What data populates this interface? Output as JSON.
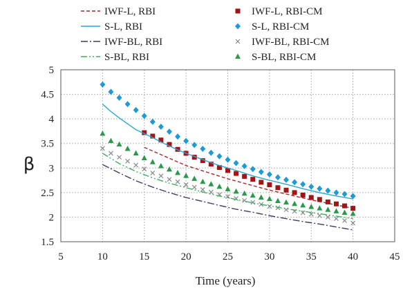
{
  "chart_data": {
    "type": "line",
    "ylabel": "β",
    "xlabel": "Time (years)",
    "xlim": [
      5,
      45
    ],
    "ylim": [
      1.5,
      5
    ],
    "xticks": [
      5,
      10,
      15,
      20,
      25,
      30,
      35,
      40,
      45
    ],
    "yticks": [
      1.5,
      2,
      2.5,
      3,
      3.5,
      4,
      4.5,
      5
    ],
    "grid": true,
    "legend_position": "top",
    "series": [
      {
        "name": "IWF-L, RBI",
        "style": "dashed",
        "color": "#b22222",
        "x": [
          15,
          20,
          25,
          30,
          35,
          40
        ],
        "y": [
          3.42,
          3.05,
          2.78,
          2.55,
          2.35,
          2.18
        ]
      },
      {
        "name": "IWF-L, RBI-CM",
        "style": "square",
        "color": "#a31515",
        "x": [
          15,
          16,
          17,
          18,
          19,
          20,
          21,
          22,
          23,
          24,
          25,
          26,
          27,
          28,
          29,
          30,
          31,
          32,
          33,
          34,
          35,
          36,
          37,
          38,
          39,
          40
        ],
        "y": [
          3.72,
          3.65,
          3.57,
          3.48,
          3.38,
          3.3,
          3.22,
          3.15,
          3.08,
          3.01,
          2.95,
          2.89,
          2.83,
          2.77,
          2.71,
          2.66,
          2.6,
          2.55,
          2.5,
          2.45,
          2.4,
          2.36,
          2.31,
          2.27,
          2.23,
          2.18
        ]
      },
      {
        "name": "S-L, RBI",
        "style": "solid",
        "color": "#2aa6d6",
        "x": [
          10,
          11,
          12,
          13,
          14,
          15,
          16,
          17,
          18,
          19,
          20,
          22,
          24,
          26,
          28,
          30,
          32,
          34,
          36,
          38,
          40
        ],
        "y": [
          4.3,
          4.15,
          4.02,
          3.9,
          3.78,
          3.7,
          3.62,
          3.53,
          3.45,
          3.37,
          3.3,
          3.17,
          3.05,
          2.95,
          2.84,
          2.75,
          2.67,
          2.58,
          2.5,
          2.43,
          2.37
        ]
      },
      {
        "name": "S-L, RBI-CM",
        "style": "diamond",
        "color": "#1e9bd7",
        "x": [
          10,
          11,
          12,
          13,
          14,
          15,
          16,
          17,
          18,
          19,
          20,
          21,
          22,
          23,
          24,
          25,
          26,
          27,
          28,
          29,
          30,
          31,
          32,
          33,
          34,
          35,
          36,
          37,
          38,
          39,
          40
        ],
        "y": [
          4.7,
          4.55,
          4.43,
          4.3,
          4.18,
          4.06,
          3.94,
          3.84,
          3.74,
          3.64,
          3.55,
          3.47,
          3.39,
          3.31,
          3.24,
          3.17,
          3.1,
          3.04,
          2.98,
          2.92,
          2.87,
          2.81,
          2.76,
          2.71,
          2.67,
          2.62,
          2.58,
          2.54,
          2.5,
          2.47,
          2.43
        ]
      },
      {
        "name": "IWF-BL, RBI",
        "style": "dashdot",
        "color": "#3a3a5c",
        "x": [
          10,
          12,
          14,
          16,
          18,
          20,
          22,
          24,
          26,
          28,
          30,
          32,
          34,
          36,
          38,
          40
        ],
        "y": [
          3.07,
          2.9,
          2.74,
          2.61,
          2.5,
          2.4,
          2.32,
          2.24,
          2.16,
          2.1,
          2.03,
          1.97,
          1.91,
          1.86,
          1.8,
          1.74
        ]
      },
      {
        "name": "IWF-BL, RBI-CM",
        "style": "cross",
        "color": "#888888",
        "x": [
          10,
          11,
          12,
          13,
          14,
          15,
          16,
          17,
          18,
          19,
          20,
          21,
          22,
          23,
          24,
          25,
          26,
          27,
          28,
          29,
          30,
          31,
          32,
          33,
          34,
          35,
          36,
          37,
          38,
          39,
          40
        ],
        "y": [
          3.4,
          3.3,
          3.22,
          3.14,
          3.06,
          2.98,
          2.9,
          2.84,
          2.77,
          2.72,
          2.66,
          2.61,
          2.56,
          2.51,
          2.46,
          2.42,
          2.38,
          2.34,
          2.3,
          2.26,
          2.22,
          2.19,
          2.15,
          2.12,
          2.09,
          2.06,
          2.03,
          2.0,
          1.97,
          1.93,
          1.88
        ]
      },
      {
        "name": "S-BL, RBI",
        "style": "dashdotdot",
        "color": "#3cae5e",
        "x": [
          10,
          12,
          14,
          16,
          18,
          20,
          22,
          24,
          26,
          28,
          30,
          32,
          34,
          36,
          38,
          40
        ],
        "y": [
          3.3,
          3.09,
          2.93,
          2.8,
          2.69,
          2.6,
          2.51,
          2.43,
          2.36,
          2.29,
          2.23,
          2.17,
          2.12,
          2.07,
          2.02,
          1.97
        ]
      },
      {
        "name": "S-BL, RBI-CM",
        "style": "triangle",
        "color": "#2a9a4a",
        "x": [
          10,
          11,
          12,
          13,
          14,
          15,
          16,
          17,
          18,
          19,
          20,
          21,
          22,
          23,
          24,
          25,
          26,
          27,
          28,
          29,
          30,
          31,
          32,
          33,
          34,
          35,
          36,
          37,
          38,
          39,
          40
        ],
        "y": [
          3.7,
          3.55,
          3.48,
          3.39,
          3.3,
          3.2,
          3.12,
          3.04,
          2.97,
          2.9,
          2.84,
          2.78,
          2.72,
          2.67,
          2.62,
          2.57,
          2.52,
          2.48,
          2.44,
          2.4,
          2.37,
          2.33,
          2.3,
          2.27,
          2.24,
          2.21,
          2.18,
          2.15,
          2.12,
          2.09,
          2.07
        ]
      }
    ]
  }
}
